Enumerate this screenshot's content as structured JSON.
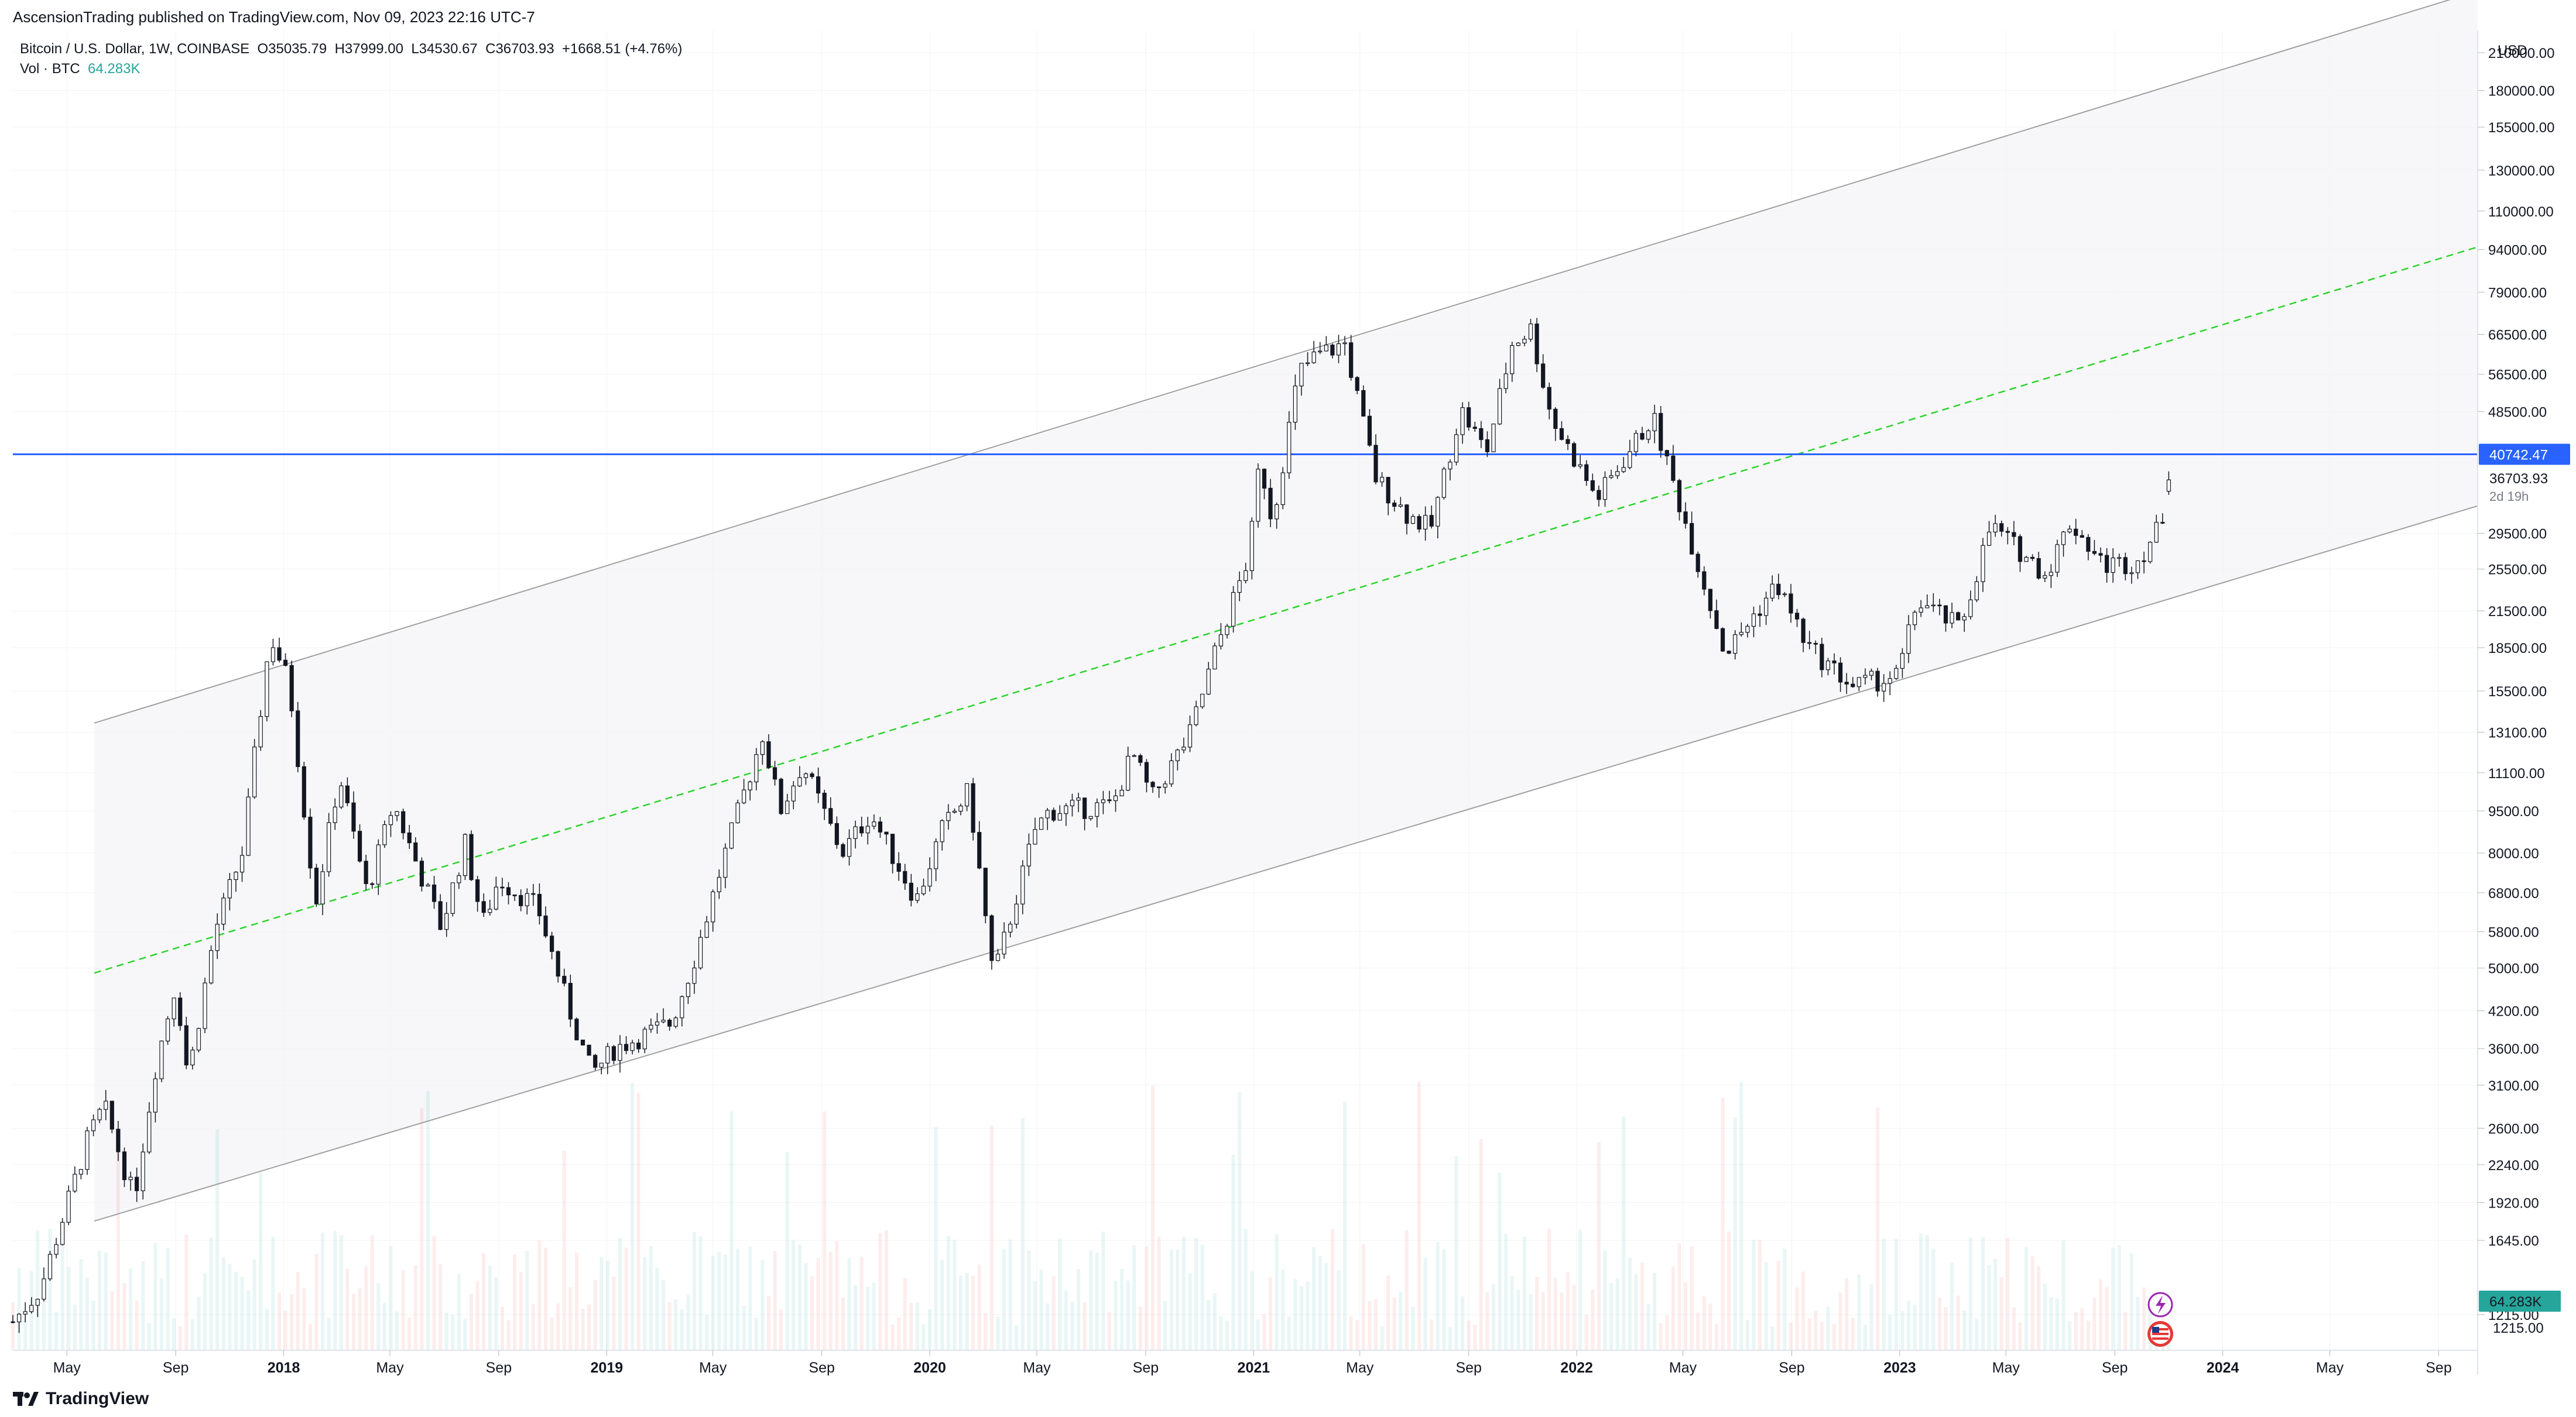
{
  "publisher_line": "AscensionTrading published on TradingView.com, Nov 09, 2023 22:16 UTC-7",
  "legend": {
    "symbol_line": "Bitcoin / U.S. Dollar, 1W, COINBASE  O35035.79  H37999.00  L34530.67  C36703.93  +1668.51 (+4.76%)",
    "vol_label": "Vol · BTC",
    "vol_value": "64.283K"
  },
  "brand": "TradingView",
  "price_axis": {
    "currency": "USD",
    "scale": "log",
    "ticks": [
      "210000.00",
      "180000.00",
      "155000.00",
      "130000.00",
      "110000.00",
      "94000.00",
      "79000.00",
      "66500.00",
      "56500.00",
      "48500.00",
      "40742.47",
      "36703.93",
      "29500.00",
      "25500.00",
      "21500.00",
      "18500.00",
      "15500.00",
      "13100.00",
      "11100.00",
      "9500.00",
      "8000.00",
      "6800.00",
      "5800.00",
      "5000.00",
      "4200.00",
      "3600.00",
      "3100.00",
      "2600.00",
      "2240.00",
      "1920.00",
      "1645.00",
      "1215.00"
    ],
    "tick_values": [
      210000,
      180000,
      155000,
      130000,
      110000,
      94000,
      79000,
      66500,
      56500,
      48500,
      40742.47,
      36703.93,
      29500,
      25500,
      21500,
      18500,
      15500,
      13100,
      11100,
      9500,
      8000,
      6800,
      5800,
      5000,
      4200,
      3600,
      3100,
      2600,
      2240,
      1920,
      1645,
      1215
    ],
    "hline_label": "40742.47",
    "last_price_label": "36703.93",
    "countdown_label": "2d 19h",
    "volume_label": "64.283K"
  },
  "time_axis": {
    "labels": [
      "May",
      "Sep",
      "2018",
      "May",
      "Sep",
      "2019",
      "May",
      "Sep",
      "2020",
      "May",
      "Sep",
      "2021",
      "May",
      "Sep",
      "2022",
      "May",
      "Sep",
      "2023",
      "May",
      "Sep",
      "2024",
      "May",
      "Sep"
    ],
    "dates": [
      "2017-05-01",
      "2017-09-01",
      "2018-01-01",
      "2018-05-01",
      "2018-09-01",
      "2019-01-01",
      "2019-05-01",
      "2019-09-01",
      "2020-01-01",
      "2020-05-01",
      "2020-09-01",
      "2021-01-01",
      "2021-05-01",
      "2021-09-01",
      "2022-01-01",
      "2022-05-01",
      "2022-09-01",
      "2023-01-01",
      "2023-05-01",
      "2023-09-01",
      "2024-01-01",
      "2024-05-01",
      "2024-09-01"
    ],
    "bold": [
      false,
      false,
      true,
      false,
      false,
      true,
      false,
      false,
      true,
      false,
      false,
      true,
      false,
      false,
      true,
      false,
      false,
      true,
      false,
      false,
      true,
      false,
      false
    ]
  },
  "chart_data": {
    "type": "candlestick",
    "symbol": "Bitcoin / U.S. Dollar",
    "interval": "1W",
    "exchange": "COINBASE",
    "y_scale": "log",
    "currency": "USD",
    "ylim": [
      1050,
      230000
    ],
    "xlim": [
      "2017-03-01",
      "2024-10-15"
    ],
    "horizontal_line": {
      "value": 40742.47,
      "color": "#2962ff"
    },
    "last_candle": {
      "open": 35035.79,
      "high": 37999.0,
      "low": 34530.67,
      "close": 36703.93,
      "change": 1668.51,
      "change_pct": 4.76,
      "volume": "64.283K"
    },
    "channel": {
      "upper": [
        [
          "2017-06-01",
          13600
        ],
        [
          "2021-04-14",
          64800
        ],
        [
          "2024-10-15",
          270000
        ]
      ],
      "lower": [
        [
          "2017-06-01",
          1780
        ],
        [
          "2022-11-21",
          15500
        ],
        [
          "2024-10-15",
          33000
        ]
      ],
      "midline": [
        [
          "2017-06-01",
          4900
        ],
        [
          "2024-10-15",
          95000
        ]
      ],
      "shade_start": "2017-06-01"
    },
    "price_path": [
      [
        "2017-03-01",
        1180
      ],
      [
        "2017-04-01",
        1350
      ],
      [
        "2017-05-01",
        1900
      ],
      [
        "2017-05-25",
        2500
      ],
      [
        "2017-06-12",
        2850
      ],
      [
        "2017-07-16",
        1950
      ],
      [
        "2017-08-10",
        3400
      ],
      [
        "2017-09-01",
        4700
      ],
      [
        "2017-09-15",
        3200
      ],
      [
        "2017-10-15",
        5800
      ],
      [
        "2017-11-15",
        8000
      ],
      [
        "2017-12-17",
        19500
      ],
      [
        "2018-01-07",
        16000
      ],
      [
        "2018-02-06",
        6500
      ],
      [
        "2018-03-05",
        11000
      ],
      [
        "2018-04-05",
        6800
      ],
      [
        "2018-05-05",
        9800
      ],
      [
        "2018-06-28",
        5900
      ],
      [
        "2018-07-25",
        8300
      ],
      [
        "2018-08-14",
        6000
      ],
      [
        "2018-09-01",
        7200
      ],
      [
        "2018-10-15",
        6400
      ],
      [
        "2018-11-20",
        4200
      ],
      [
        "2018-12-15",
        3250
      ],
      [
        "2019-01-10",
        3600
      ],
      [
        "2019-03-15",
        4000
      ],
      [
        "2019-04-10",
        5200
      ],
      [
        "2019-05-15",
        8000
      ],
      [
        "2019-06-26",
        13000
      ],
      [
        "2019-07-16",
        9500
      ],
      [
        "2019-08-10",
        11500
      ],
      [
        "2019-09-24",
        8000
      ],
      [
        "2019-10-26",
        9400
      ],
      [
        "2019-12-17",
        6600
      ],
      [
        "2020-01-15",
        8800
      ],
      [
        "2020-02-14",
        10300
      ],
      [
        "2020-03-13",
        4800
      ],
      [
        "2020-04-29",
        8800
      ],
      [
        "2020-05-15",
        9500
      ],
      [
        "2020-07-25",
        9700
      ],
      [
        "2020-08-17",
        12000
      ],
      [
        "2020-09-08",
        10000
      ],
      [
        "2020-10-21",
        13000
      ],
      [
        "2020-11-20",
        18500
      ],
      [
        "2020-12-27",
        27000
      ],
      [
        "2021-01-08",
        40000
      ],
      [
        "2021-01-22",
        31000
      ],
      [
        "2021-02-21",
        57000
      ],
      [
        "2021-03-13",
        61000
      ],
      [
        "2021-04-14",
        64000
      ],
      [
        "2021-05-19",
        37000
      ],
      [
        "2021-06-22",
        32000
      ],
      [
        "2021-07-20",
        30000
      ],
      [
        "2021-08-23",
        49000
      ],
      [
        "2021-09-21",
        41000
      ],
      [
        "2021-10-20",
        64000
      ],
      [
        "2021-11-10",
        68000
      ],
      [
        "2021-12-04",
        47000
      ],
      [
        "2022-01-24",
        34000
      ],
      [
        "2022-03-28",
        47500
      ],
      [
        "2022-05-12",
        28000
      ],
      [
        "2022-06-18",
        18000
      ],
      [
        "2022-08-15",
        24000
      ],
      [
        "2022-09-20",
        18500
      ],
      [
        "2022-11-09",
        15800
      ],
      [
        "2022-12-30",
        16500
      ],
      [
        "2023-01-21",
        22500
      ],
      [
        "2023-03-10",
        20000
      ],
      [
        "2023-04-14",
        30500
      ],
      [
        "2023-06-15",
        25000
      ],
      [
        "2023-07-13",
        31000
      ],
      [
        "2023-08-18",
        26000
      ],
      [
        "2023-09-25",
        26200
      ],
      [
        "2023-10-20",
        30000
      ],
      [
        "2023-11-06",
        36703.93
      ]
    ]
  }
}
